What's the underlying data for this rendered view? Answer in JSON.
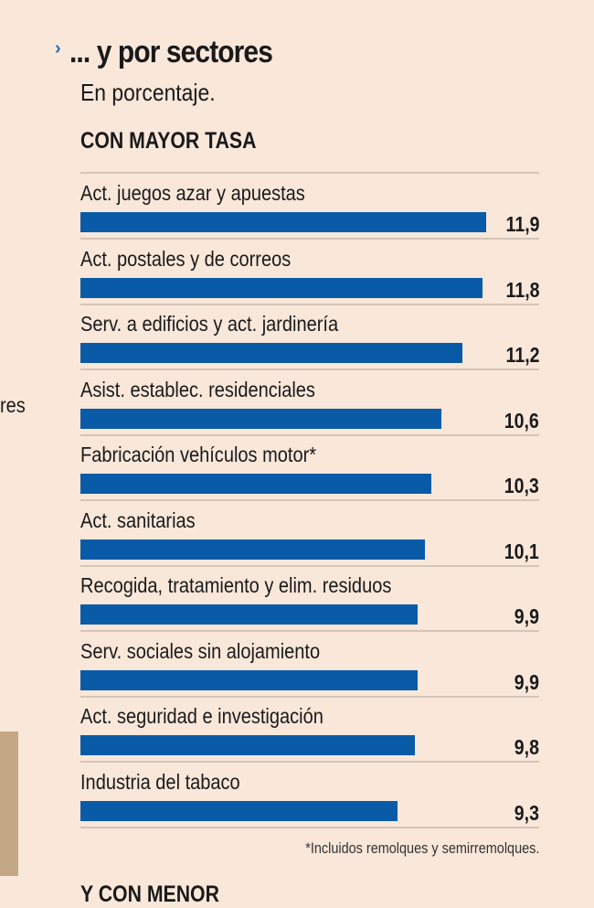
{
  "colors": {
    "bar": "#0a5ba7",
    "background": "#f9e7da",
    "accent": "#1e6fb5"
  },
  "icons": {
    "title_marker": "chevron-right-icon"
  },
  "left_fragment": "res",
  "chart_data": {
    "type": "bar",
    "orientation": "horizontal",
    "title": "... y por sectores",
    "subtitle": "En porcentaje.",
    "section": "CON MAYOR TASA",
    "categories": [
      "Act. juegos azar y apuestas",
      "Act. postales y de correos",
      "Serv. a edificios y act. jardinería",
      "Asist. establec. residenciales",
      "Fabricación vehículos motor*",
      "Act. sanitarias",
      "Recogida, tratamiento y elim. residuos",
      "Serv. sociales sin alojamiento",
      "Act. seguridad e investigación",
      "Industria del tabaco"
    ],
    "values": [
      11.9,
      11.8,
      11.2,
      10.6,
      10.3,
      10.1,
      9.9,
      9.9,
      9.8,
      9.3
    ],
    "value_labels": [
      "11,9",
      "11,8",
      "11,2",
      "10,6",
      "10,3",
      "10,1",
      "9,9",
      "9,9",
      "9,8",
      "9,3"
    ],
    "xlim": [
      0,
      11.9
    ],
    "grid": false,
    "footnote": "*Incluidos remolques y semirremolques.",
    "next_section": "Y CON MENOR"
  }
}
